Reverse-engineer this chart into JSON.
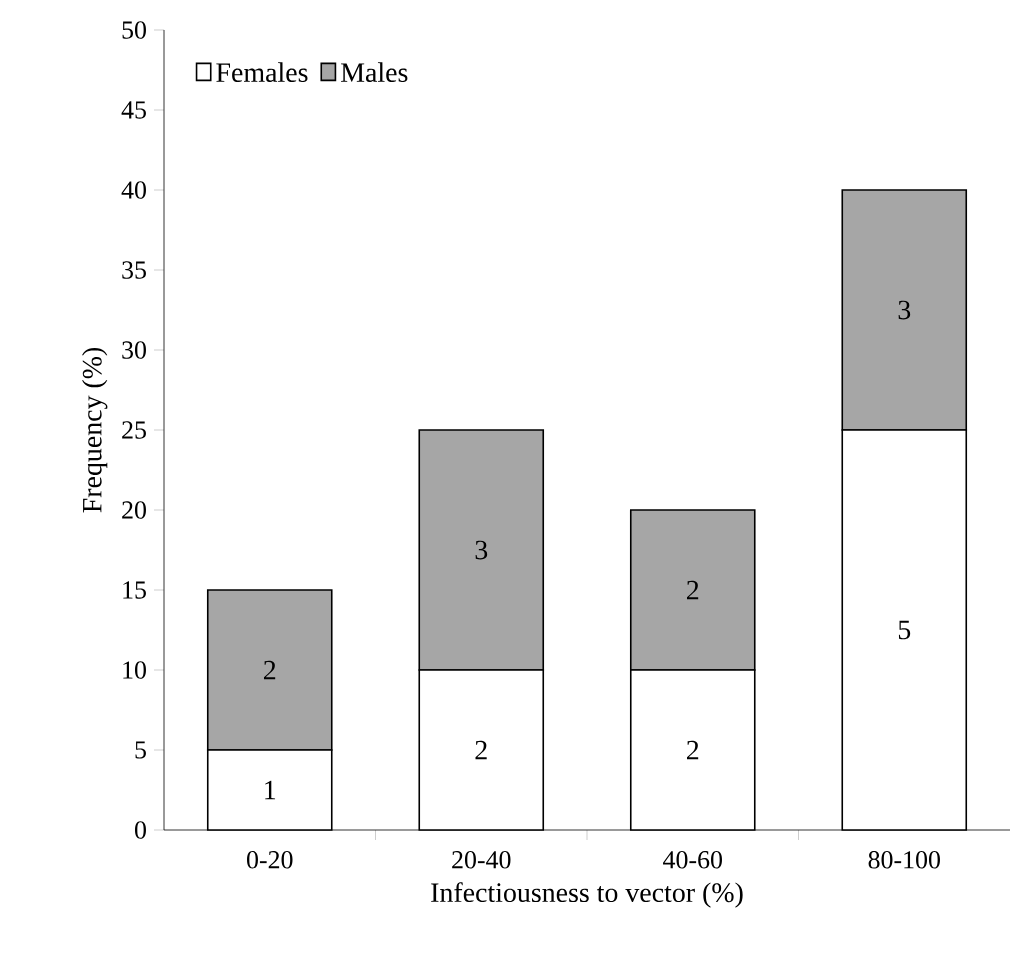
{
  "chart_data": {
    "type": "bar",
    "stacked": true,
    "xlabel": "Infectiousness to vector (%)",
    "ylabel": "Frequency (%)",
    "categories": [
      "0-20",
      "20-40",
      "40-60",
      "80-100"
    ],
    "series": [
      {
        "name": "Females",
        "color": "#ffffff",
        "values": [
          5,
          10,
          10,
          25
        ]
      },
      {
        "name": "Males",
        "color": "#a6a6a6",
        "values": [
          10,
          15,
          10,
          15
        ]
      }
    ],
    "annotations": [
      "1",
      "2",
      "2",
      "5",
      "2",
      "3",
      "2",
      "3"
    ],
    "ylim": [
      0,
      50
    ],
    "yticks": [
      0,
      5,
      10,
      15,
      20,
      25,
      30,
      35,
      40,
      45,
      50
    ],
    "legend": "top left"
  }
}
